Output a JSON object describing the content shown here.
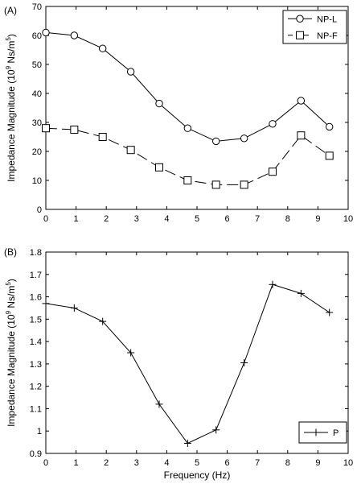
{
  "figure": {
    "xlabel": "Frequency (Hz)"
  },
  "chart_data": [
    {
      "panel_label": "(A)",
      "type": "line",
      "ylabel": "Impedance Magnitude (10^9 Ns/m^5)",
      "ylabel_parts": {
        "pre": "Impedance Magnitude (10",
        "exp1": "9",
        "mid": " Ns/m",
        "exp2": "5",
        "post": ")"
      },
      "xlim": [
        0,
        10
      ],
      "ylim": [
        0,
        70
      ],
      "xticks": [
        0,
        1,
        2,
        3,
        4,
        5,
        6,
        7,
        8,
        9,
        10
      ],
      "yticks": [
        0,
        10,
        20,
        30,
        40,
        50,
        60,
        70
      ],
      "grid": false,
      "legend_position": "top-right",
      "series": [
        {
          "name": "NP-L",
          "marker": "circle",
          "dash": "solid",
          "x": [
            0,
            0.94,
            1.88,
            2.81,
            3.75,
            4.69,
            5.63,
            6.56,
            7.5,
            8.44,
            9.38
          ],
          "y": [
            61,
            60,
            55.5,
            47.5,
            36.5,
            28,
            23.5,
            24.5,
            29.5,
            37.5,
            28.5
          ]
        },
        {
          "name": "NP-F",
          "marker": "square",
          "dash": "dashed",
          "x": [
            0,
            0.94,
            1.88,
            2.81,
            3.75,
            4.69,
            5.63,
            6.56,
            7.5,
            8.44,
            9.38
          ],
          "y": [
            28,
            27.5,
            25,
            20.5,
            14.5,
            10,
            8.5,
            8.5,
            13,
            25.5,
            18.5
          ]
        }
      ]
    },
    {
      "panel_label": "(B)",
      "type": "line",
      "ylabel": "Impedance Magnitude (10^9 Ns/m^5)",
      "ylabel_parts": {
        "pre": "Impedance Magnitude (10",
        "exp1": "9",
        "mid": " Ns/m",
        "exp2": "5",
        "post": ")"
      },
      "xlim": [
        0,
        10
      ],
      "ylim": [
        0.9,
        1.8
      ],
      "xticks": [
        0,
        1,
        2,
        3,
        4,
        5,
        6,
        7,
        8,
        9,
        10
      ],
      "yticks": [
        0.9,
        1,
        1.1,
        1.2,
        1.3,
        1.4,
        1.5,
        1.6,
        1.7,
        1.8
      ],
      "ytick_labels": [
        "0.9",
        "1",
        "1.1",
        "1.2",
        "1.3",
        "1.4",
        "1.5",
        "1.6",
        "1.7",
        "1.8"
      ],
      "grid": false,
      "legend_position": "bottom-right",
      "series": [
        {
          "name": "P",
          "marker": "plus",
          "dash": "solid",
          "x": [
            0,
            0.94,
            1.88,
            2.81,
            3.75,
            4.69,
            5.63,
            6.56,
            7.5,
            8.44,
            9.38
          ],
          "y": [
            1.57,
            1.55,
            1.49,
            1.35,
            1.12,
            0.945,
            1.005,
            1.305,
            1.655,
            1.615,
            1.53
          ]
        }
      ]
    }
  ]
}
